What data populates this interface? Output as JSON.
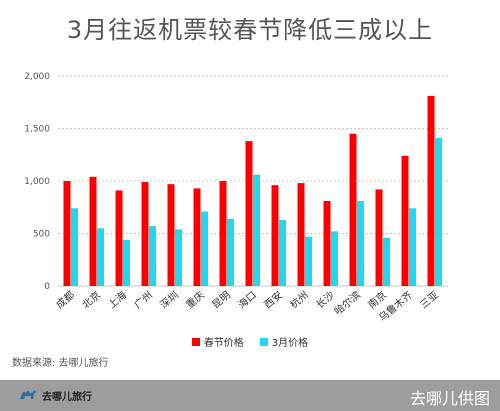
{
  "chart_data": {
    "type": "bar",
    "title": "3月往返机票较春节降低三成以上",
    "categories": [
      "成都",
      "北京",
      "上海",
      "广州",
      "深圳",
      "重庆",
      "昆明",
      "海口",
      "西安",
      "杭州",
      "长沙",
      "哈尔滨",
      "南京",
      "乌鲁木齐",
      "三亚"
    ],
    "series": [
      {
        "name": "春节价格",
        "color": "#ff0000",
        "values": [
          1000,
          1040,
          910,
          990,
          970,
          930,
          1000,
          1380,
          960,
          980,
          810,
          1450,
          920,
          1240,
          1810
        ]
      },
      {
        "name": "3月价格",
        "color": "#22d8ee",
        "values": [
          740,
          550,
          440,
          570,
          540,
          710,
          640,
          1060,
          630,
          470,
          520,
          810,
          460,
          740,
          1410
        ]
      }
    ],
    "ylim": [
      0,
      2000
    ],
    "yticks": [
      "0",
      "500",
      "1,000",
      "1,500",
      "2,000"
    ],
    "ytick_values": [
      0,
      500,
      1000,
      1500,
      2000
    ],
    "grid": true,
    "legend_position": "bottom"
  },
  "source_text": "数据来源: 去哪儿旅行",
  "footer": {
    "logo_text": "去哪儿旅行",
    "right_text": "去哪儿供图"
  }
}
